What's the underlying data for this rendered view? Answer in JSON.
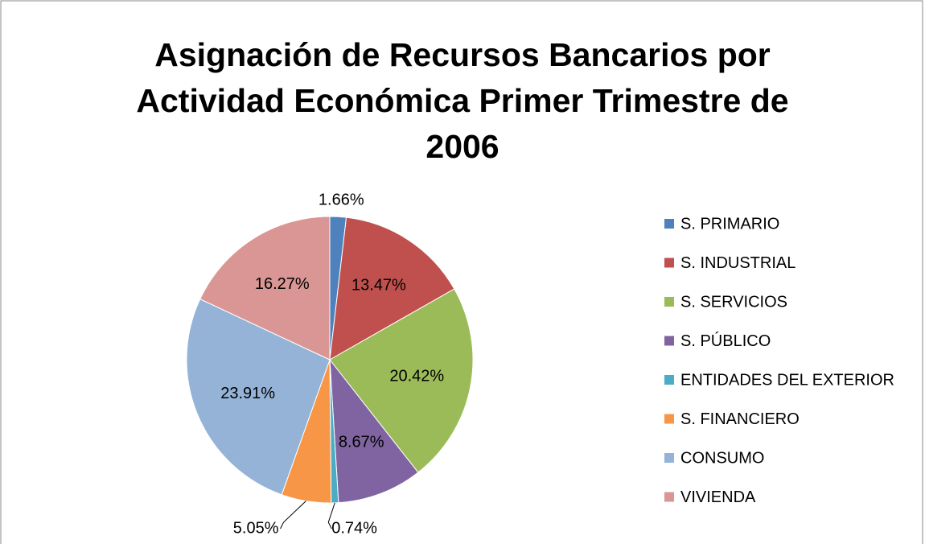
{
  "chart_data": {
    "type": "pie",
    "title": "Asignación de Recursos Bancarios por Actividad Económica Primer Trimestre de 2006",
    "categories": [
      "S. PRIMARIO",
      "S. INDUSTRIAL",
      "S. SERVICIOS",
      "S. PÚBLICO",
      "ENTIDADES DEL EXTERIOR",
      "S. FINANCIERO",
      "CONSUMO",
      "VIVIENDA"
    ],
    "values": [
      1.66,
      13.47,
      20.42,
      8.67,
      0.74,
      5.05,
      23.91,
      16.27
    ],
    "value_labels": [
      "1.66%",
      "13.47%",
      "20.42%",
      "8.67%",
      "0.74%",
      "5.05%",
      "23.91%",
      "16.27%"
    ],
    "colors": [
      "#4f81bd",
      "#c0504d",
      "#9bbb59",
      "#8064a2",
      "#4bacc6",
      "#f79646",
      "#95b3d7",
      "#d99694"
    ],
    "legend": "right"
  }
}
